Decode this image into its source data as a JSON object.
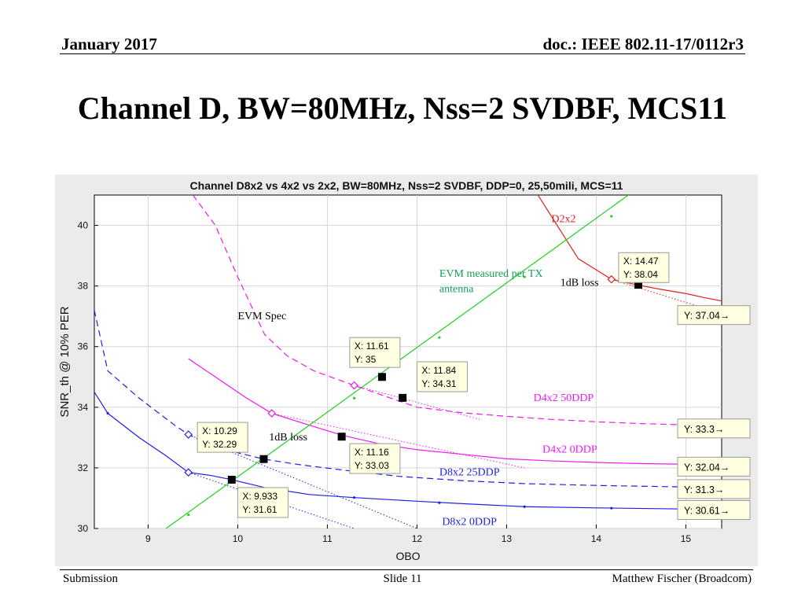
{
  "header": {
    "date": "January 2017",
    "doc": "doc.: IEEE 802.11-17/0112r3"
  },
  "slide_title": "Channel D, BW=80MHz, Nss=2 SVDBF, MCS11",
  "footer": {
    "left": "Submission",
    "center": "Slide 11",
    "right": "Matthew Fischer (Broadcom)"
  },
  "chart_data": {
    "type": "line",
    "title": "Channel D8x2 vs 4x2 vs 2x2, BW=80MHz, Nss=2 SVDBF, DDP=0, 25,50mili, MCS=11",
    "xlabel": "OBO",
    "ylabel": "SNR_th @ 10% PER",
    "xlim": [
      8.4,
      15.4
    ],
    "ylim": [
      30,
      41
    ],
    "xticks": [
      9,
      10,
      11,
      12,
      13,
      14,
      15
    ],
    "yticks": [
      30,
      32,
      34,
      36,
      38,
      40
    ],
    "grid": true,
    "colors": {
      "blue": "#1f1fe6",
      "magenta": "#ee1aee",
      "red": "#e61e1e",
      "green": "#1ed21e",
      "label_green": "#12a05a"
    },
    "series": [
      {
        "name": "D2x2",
        "color": "#e61e1e",
        "dash": "solid",
        "x": [
          13.35,
          13.8,
          14.17,
          14.45,
          14.7,
          15.0,
          15.2,
          15.5
        ],
        "y": [
          41.0,
          38.9,
          38.22,
          38.04,
          37.9,
          37.75,
          37.62,
          37.45
        ]
      },
      {
        "name": "D4x2 50DDP",
        "color": "#ee1aee",
        "dash": "dashed",
        "x": [
          9.5,
          9.75,
          10.0,
          10.3,
          10.55,
          10.85,
          11.3,
          11.61,
          12.0,
          12.5,
          13.0,
          13.5,
          14.0,
          14.5,
          15.0,
          15.5
        ],
        "y": [
          41.0,
          40.0,
          38.3,
          36.4,
          35.7,
          35.2,
          34.72,
          34.4,
          34.0,
          33.82,
          33.7,
          33.6,
          33.52,
          33.46,
          33.42,
          33.38
        ]
      },
      {
        "name": "D4x2 0DDP",
        "color": "#ee1aee",
        "dash": "solid",
        "x": [
          9.45,
          9.75,
          10.1,
          10.38,
          10.7,
          11.16,
          11.6,
          12.0,
          12.5,
          13.0,
          13.5,
          14.0,
          14.5,
          15.0,
          15.5
        ],
        "y": [
          35.6,
          35.0,
          34.3,
          33.8,
          33.5,
          33.08,
          32.78,
          32.6,
          32.45,
          32.3,
          32.23,
          32.18,
          32.14,
          32.12,
          32.1
        ]
      },
      {
        "name": "D8x2 25DDP",
        "color": "#1f1fe6",
        "dash": "dashed",
        "x": [
          8.4,
          8.55,
          8.9,
          9.3,
          9.45,
          9.7,
          10.0,
          10.29,
          10.7,
          11.2,
          11.8,
          12.5,
          13.2,
          14.0,
          14.8,
          15.5
        ],
        "y": [
          37.2,
          35.2,
          34.3,
          33.4,
          33.1,
          32.75,
          32.5,
          32.29,
          32.1,
          31.92,
          31.72,
          31.58,
          31.48,
          31.42,
          31.38,
          31.35
        ]
      },
      {
        "name": "D8x2 0DDP",
        "color": "#1f1fe6",
        "dash": "solid",
        "x": [
          8.4,
          8.55,
          8.9,
          9.2,
          9.45,
          9.7,
          9.933,
          10.3,
          10.8,
          11.3,
          12.0,
          12.5,
          13.2,
          14.0,
          14.8,
          15.5
        ],
        "y": [
          34.5,
          33.8,
          33.0,
          32.4,
          31.85,
          31.75,
          31.61,
          31.35,
          31.12,
          31.02,
          30.9,
          30.82,
          30.72,
          30.68,
          30.65,
          30.62
        ]
      },
      {
        "name": "EVM Spec",
        "color": "#1ed21e",
        "dash": "solid",
        "x": [
          9.2,
          14.5
        ],
        "y": [
          30.0,
          41.3
        ]
      }
    ],
    "markers": [
      {
        "series": "D2x2",
        "x": 14.17,
        "y": 38.22,
        "shape": "diamond"
      },
      {
        "series": "D4x2 50DDP",
        "x": 11.3,
        "y": 34.72,
        "shape": "diamond"
      },
      {
        "series": "D4x2 0DDP",
        "x": 10.38,
        "y": 33.8,
        "shape": "diamond"
      },
      {
        "series": "D8x2 25DDP",
        "x": 9.45,
        "y": 33.1,
        "shape": "diamond"
      },
      {
        "series": "D8x2 0DDP",
        "x": 9.45,
        "y": 31.85,
        "shape": "diamond"
      }
    ],
    "dotted_lines": [
      {
        "color": "#e61e1e",
        "x": [
          14.17,
          15.5
        ],
        "y": [
          38.22,
          37.0
        ]
      },
      {
        "color": "#ee1aee",
        "x": [
          11.3,
          12.7
        ],
        "y": [
          34.72,
          33.6
        ]
      },
      {
        "color": "#ee1aee",
        "x": [
          10.38,
          13.2
        ],
        "y": [
          33.8,
          32.0
        ]
      },
      {
        "color": "#1f1fe6",
        "x": [
          9.45,
          12.0
        ],
        "y": [
          33.1,
          30.0
        ]
      },
      {
        "color": "#1f1fe6",
        "x": [
          9.45,
          11.3
        ],
        "y": [
          31.85,
          30.0
        ]
      }
    ],
    "square_points": [
      {
        "x": 14.47,
        "y": 38.04
      },
      {
        "x": 11.61,
        "y": 35.0
      },
      {
        "x": 11.84,
        "y": 34.31
      },
      {
        "x": 11.16,
        "y": 33.03
      },
      {
        "x": 10.29,
        "y": 32.29
      },
      {
        "x": 9.933,
        "y": 31.61
      }
    ],
    "datatips": [
      {
        "lines": [
          "X: 14.47",
          "Y: 38.04"
        ],
        "anchor": [
          14.25,
          39.1
        ]
      },
      {
        "lines": [
          "X: 11.61",
          "Y: 35"
        ],
        "anchor": [
          11.25,
          36.3
        ]
      },
      {
        "lines": [
          "X: 11.84",
          "Y: 34.31"
        ],
        "anchor": [
          12.0,
          35.5
        ]
      },
      {
        "lines": [
          "X: 11.16",
          "Y: 33.03"
        ],
        "anchor": [
          11.25,
          32.8
        ]
      },
      {
        "lines": [
          "X: 10.29",
          "Y: 32.29"
        ],
        "anchor": [
          9.55,
          33.5
        ]
      },
      {
        "lines": [
          "X: 9.933",
          "Y: 31.61"
        ],
        "anchor": [
          10.0,
          31.35
        ]
      }
    ],
    "right_tips": [
      {
        "text": "Y: 37.04→",
        "y": 37.04
      },
      {
        "text": "Y: 33.3→",
        "y": 33.3
      },
      {
        "text": "Y: 32.04→",
        "y": 32.04
      },
      {
        "text": "Y: 31.3→",
        "y": 31.3
      },
      {
        "text": "Y: 30.61→",
        "y": 30.61
      }
    ],
    "annotations": [
      {
        "text": "D2x2",
        "x": 13.5,
        "y": 40.1,
        "color": "#e61e1e"
      },
      {
        "text": "EVM measured per TX",
        "x": 12.25,
        "y": 38.3,
        "color": "#12a05a"
      },
      {
        "text": "antenna",
        "x": 12.25,
        "y": 37.8,
        "color": "#12a05a"
      },
      {
        "text": "1dB loss",
        "x": 13.6,
        "y": 38.0,
        "color": "#000000"
      },
      {
        "text": "EVM Spec",
        "x": 10.0,
        "y": 36.9,
        "color": "#000000"
      },
      {
        "text": "D4x2 50DDP",
        "x": 13.3,
        "y": 34.2,
        "color": "#ee1aee"
      },
      {
        "text": "1dB loss",
        "x": 10.35,
        "y": 32.9,
        "color": "#000000"
      },
      {
        "text": "D4x2 0DDP",
        "x": 13.4,
        "y": 32.5,
        "color": "#ee1aee"
      },
      {
        "text": "D8x2 25DDP",
        "x": 12.25,
        "y": 31.75,
        "color": "#1f1fe6"
      },
      {
        "text": "D8x2 0DDP",
        "x": 12.28,
        "y": 30.12,
        "color": "#1f1fe6"
      }
    ]
  }
}
